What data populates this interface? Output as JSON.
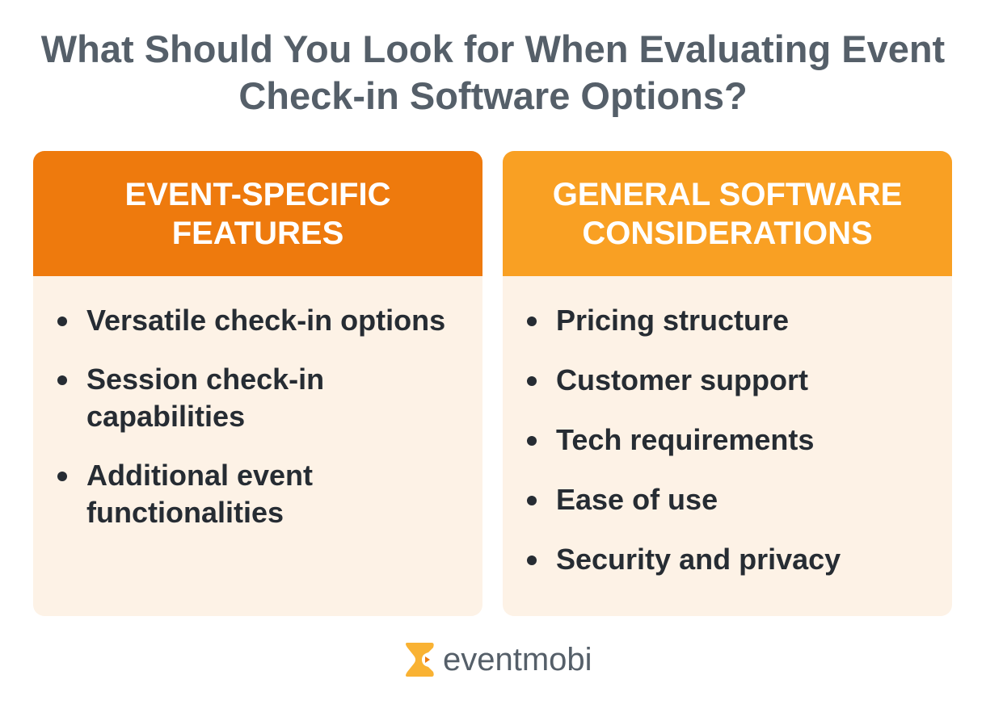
{
  "title": "What Should You Look for When Evaluating Event Check-in Software Options?",
  "columns": [
    {
      "heading": "EVENT-SPECIFIC FEATURES",
      "color": "#ee7a0d",
      "items": [
        "Versatile check-in options",
        "Session check-in capabilities",
        "Additional event functionalities"
      ]
    },
    {
      "heading": "GENERAL SOFTWARE CONSIDERATIONS",
      "color": "#f9a023",
      "items": [
        "Pricing structure",
        "Customer support",
        "Tech requirements",
        "Ease of use",
        "Security and privacy"
      ]
    }
  ],
  "logo": {
    "text": "eventmobi",
    "icon": "eventmobi-logo-icon"
  }
}
